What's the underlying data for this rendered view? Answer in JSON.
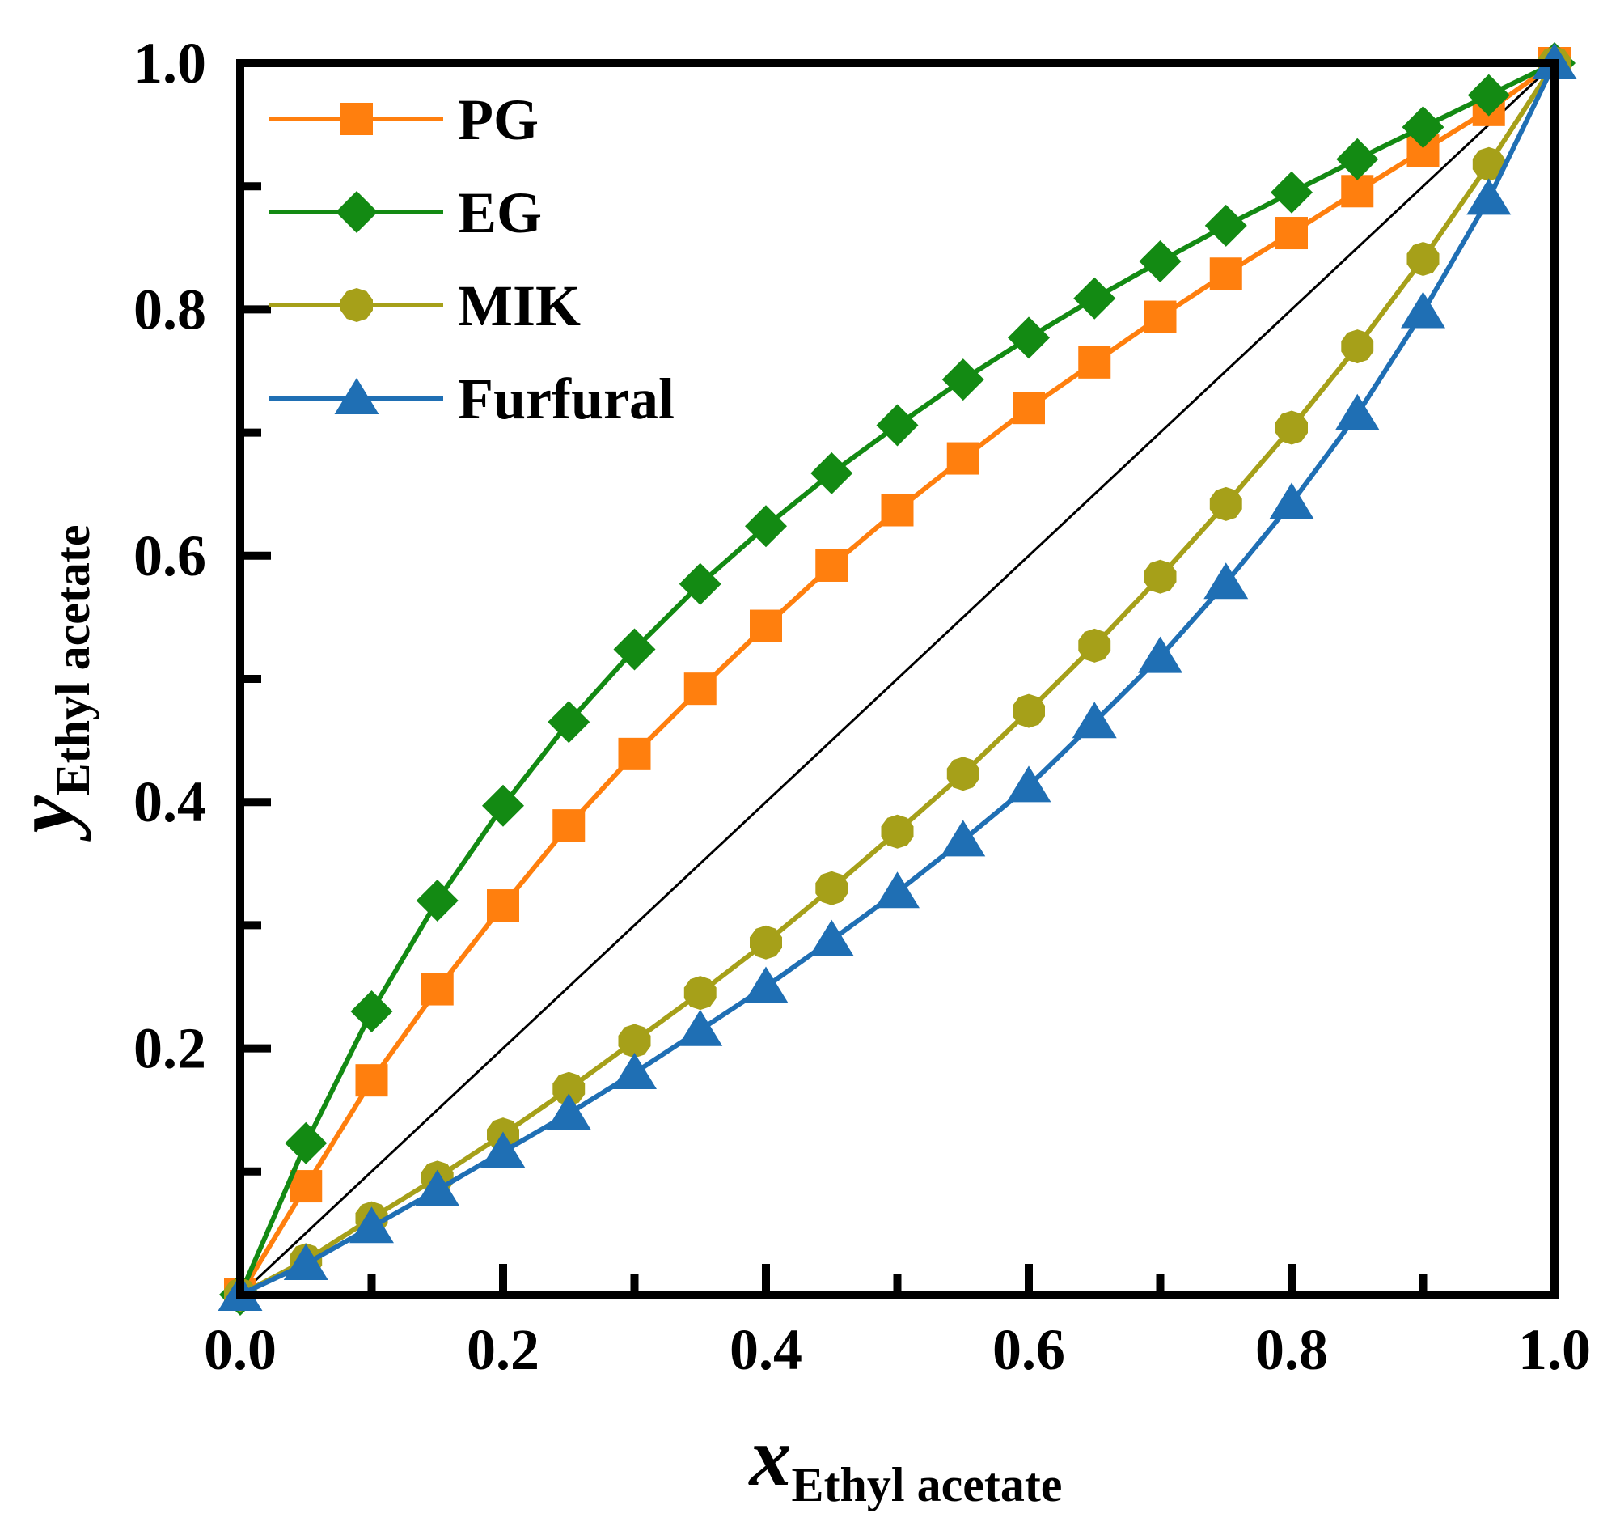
{
  "chart_data": {
    "type": "line",
    "title": "",
    "xlabel": {
      "symbol": "x",
      "subscript": "Ethyl acetate"
    },
    "ylabel": {
      "symbol": "y",
      "subscript": "Ethyl acetate"
    },
    "xlim": [
      0,
      1
    ],
    "ylim": [
      0,
      1
    ],
    "xticks": [
      0.0,
      0.1,
      0.2,
      0.3,
      0.4,
      0.5,
      0.6,
      0.7,
      0.8,
      0.9,
      1.0
    ],
    "xtick_labels": [
      "0.0",
      "",
      "0.2",
      "",
      "0.4",
      "",
      "0.6",
      "",
      "0.8",
      "",
      "1.0"
    ],
    "yticks": [
      0.1,
      0.2,
      0.3,
      0.4,
      0.5,
      0.6,
      0.7,
      0.8,
      0.9,
      1.0
    ],
    "ytick_labels": [
      "",
      "0.2",
      "",
      "0.4",
      "",
      "0.6",
      "",
      "0.8",
      "",
      "1.0"
    ],
    "grid": false,
    "legend_position": "top-left",
    "reference_line": {
      "name": "y = x",
      "color": "#000000",
      "x": [
        0,
        1
      ],
      "y": [
        0,
        1
      ]
    },
    "x": [
      0,
      0.05,
      0.1,
      0.15,
      0.2,
      0.25,
      0.3,
      0.35,
      0.4,
      0.45,
      0.5,
      0.55,
      0.6,
      0.65,
      0.7,
      0.75,
      0.8,
      0.85,
      0.9,
      0.95,
      1.0
    ],
    "series": [
      {
        "name": "PG",
        "color": "#FF7F0E",
        "marker": "square",
        "values": [
          0,
          0.088,
          0.174,
          0.248,
          0.316,
          0.381,
          0.439,
          0.492,
          0.543,
          0.592,
          0.637,
          0.679,
          0.72,
          0.757,
          0.794,
          0.829,
          0.862,
          0.896,
          0.929,
          0.962,
          1.0
        ]
      },
      {
        "name": "EG",
        "color": "#138A13",
        "marker": "diamond",
        "values": [
          0,
          0.123,
          0.23,
          0.32,
          0.397,
          0.465,
          0.524,
          0.577,
          0.624,
          0.667,
          0.706,
          0.743,
          0.777,
          0.809,
          0.839,
          0.868,
          0.895,
          0.922,
          0.948,
          0.974,
          1.0
        ]
      },
      {
        "name": "MIK",
        "color": "#A6A019",
        "marker": "circle",
        "values": [
          0,
          0.028,
          0.062,
          0.095,
          0.13,
          0.167,
          0.206,
          0.245,
          0.286,
          0.33,
          0.376,
          0.423,
          0.474,
          0.527,
          0.583,
          0.642,
          0.704,
          0.77,
          0.841,
          0.918,
          1.0
        ]
      },
      {
        "name": "Furfural",
        "color": "#1F6FB4",
        "marker": "triangle",
        "values": [
          0,
          0.025,
          0.055,
          0.085,
          0.116,
          0.147,
          0.18,
          0.215,
          0.25,
          0.288,
          0.327,
          0.369,
          0.413,
          0.465,
          0.518,
          0.578,
          0.643,
          0.715,
          0.798,
          0.89,
          1.0
        ]
      }
    ]
  }
}
